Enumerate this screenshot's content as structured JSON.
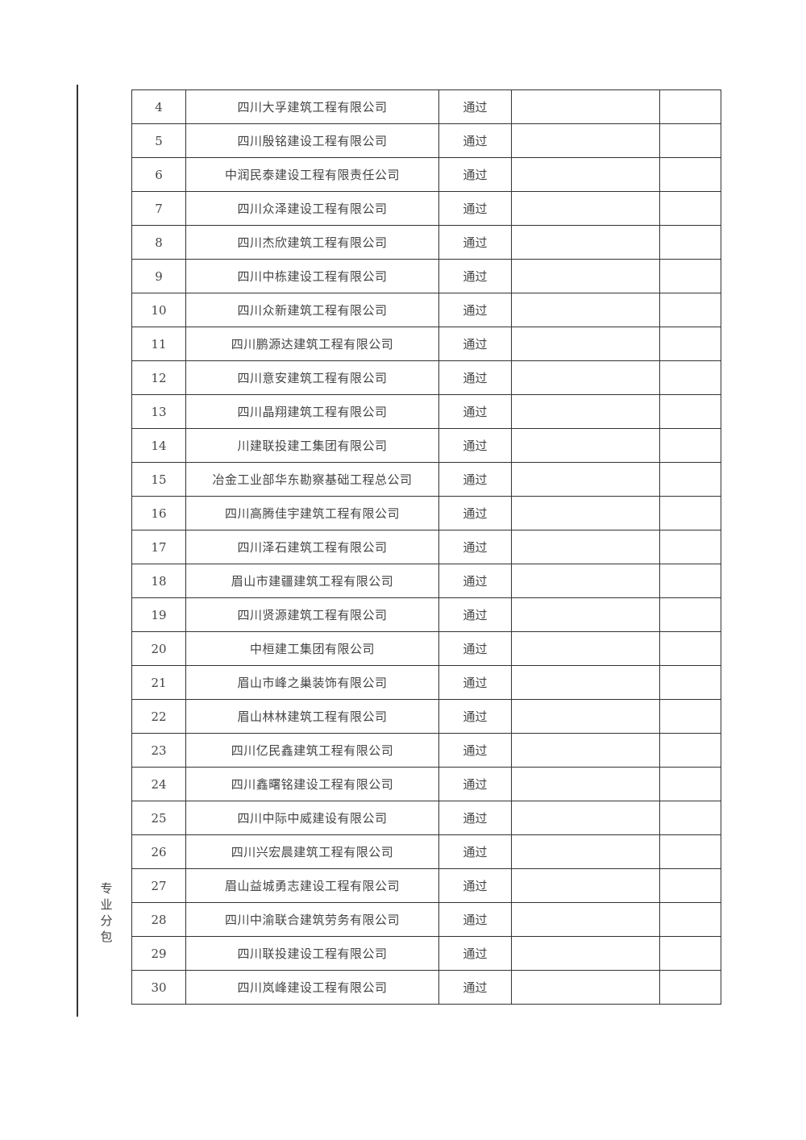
{
  "category_label": "专业分包",
  "rows": [
    {
      "no": "4",
      "company": "四川大孚建筑工程有限公司",
      "result": "通过"
    },
    {
      "no": "5",
      "company": "四川殷铭建设工程有限公司",
      "result": "通过"
    },
    {
      "no": "6",
      "company": "中润民泰建设工程有限责任公司",
      "result": "通过"
    },
    {
      "no": "7",
      "company": "四川众泽建设工程有限公司",
      "result": "通过"
    },
    {
      "no": "8",
      "company": "四川杰欣建筑工程有限公司",
      "result": "通过"
    },
    {
      "no": "9",
      "company": "四川中栋建设工程有限公司",
      "result": "通过"
    },
    {
      "no": "10",
      "company": "四川众新建筑工程有限公司",
      "result": "通过"
    },
    {
      "no": "11",
      "company": "四川鹏源达建筑工程有限公司",
      "result": "通过"
    },
    {
      "no": "12",
      "company": "四川意安建筑工程有限公司",
      "result": "通过"
    },
    {
      "no": "13",
      "company": "四川晶翔建筑工程有限公司",
      "result": "通过"
    },
    {
      "no": "14",
      "company": "川建联投建工集团有限公司",
      "result": "通过"
    },
    {
      "no": "15",
      "company": "冶金工业部华东勘察基础工程总公司",
      "result": "通过"
    },
    {
      "no": "16",
      "company": "四川高腾佳宇建筑工程有限公司",
      "result": "通过"
    },
    {
      "no": "17",
      "company": "四川泽石建筑工程有限公司",
      "result": "通过"
    },
    {
      "no": "18",
      "company": "眉山市建疆建筑工程有限公司",
      "result": "通过"
    },
    {
      "no": "19",
      "company": "四川贤源建筑工程有限公司",
      "result": "通过"
    },
    {
      "no": "20",
      "company": "中桓建工集团有限公司",
      "result": "通过"
    },
    {
      "no": "21",
      "company": "眉山市峰之巢装饰有限公司",
      "result": "通过"
    },
    {
      "no": "22",
      "company": "眉山林林建筑工程有限公司",
      "result": "通过"
    },
    {
      "no": "23",
      "company": "四川亿民鑫建筑工程有限公司",
      "result": "通过"
    },
    {
      "no": "24",
      "company": "四川鑫曙铭建设工程有限公司",
      "result": "通过"
    },
    {
      "no": "25",
      "company": "四川中际中威建设有限公司",
      "result": "通过"
    },
    {
      "no": "26",
      "company": "四川兴宏晨建筑工程有限公司",
      "result": "通过"
    },
    {
      "no": "27",
      "company": "眉山益城勇志建设工程有限公司",
      "result": "通过"
    },
    {
      "no": "28",
      "company": "四川中渝联合建筑劳务有限公司",
      "result": "通过"
    },
    {
      "no": "29",
      "company": "四川联投建设工程有限公司",
      "result": "通过"
    },
    {
      "no": "30",
      "company": "四川岚峰建设工程有限公司",
      "result": "通过"
    }
  ]
}
